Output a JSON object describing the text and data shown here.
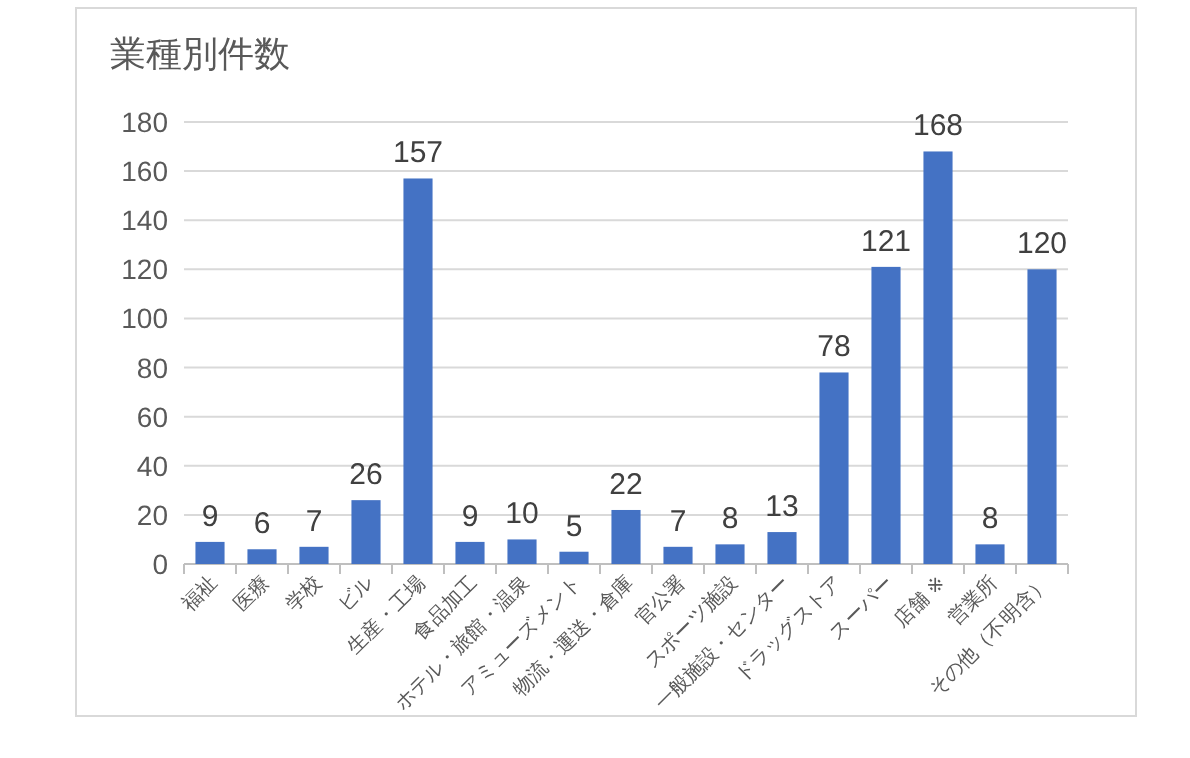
{
  "chart_data": {
    "type": "bar",
    "title": "業種別件数",
    "categories": [
      "福祉",
      "医療",
      "学校",
      "ビル",
      "生産・工場",
      "食品加工",
      "ホテル・旅館・温泉",
      "アミューズメント",
      "物流・運送・倉庫",
      "官公署",
      "スポーツ施設",
      "一般施設・センター",
      "ドラッグストア",
      "スーパー",
      "店舗 ※",
      "営業所",
      "その他（不明含）"
    ],
    "values": [
      9,
      6,
      7,
      26,
      157,
      9,
      10,
      5,
      22,
      7,
      8,
      13,
      78,
      121,
      168,
      8,
      120
    ],
    "color": "#4472c4",
    "ylim": [
      0,
      180
    ],
    "yticks": [
      0,
      20,
      40,
      60,
      80,
      100,
      120,
      140,
      160,
      180
    ],
    "grid": "y",
    "data_labels": true
  }
}
